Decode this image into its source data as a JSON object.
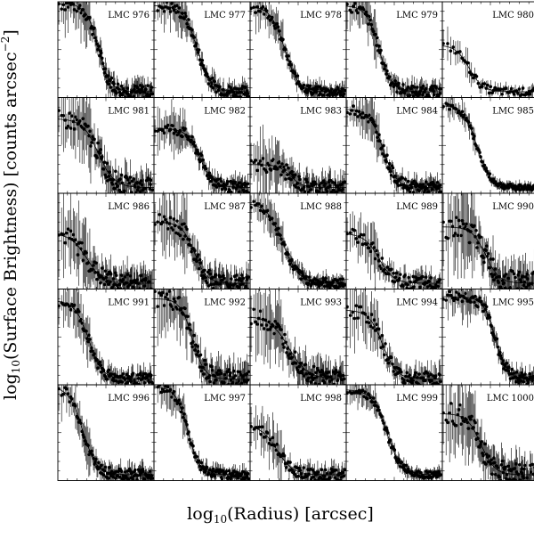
{
  "figure": {
    "xlabel": {
      "pre": "log",
      "sub": "10",
      "post": "(Radius) [arcsec]"
    },
    "ylabel": {
      "pre": "log",
      "sub": "10",
      "post": "(Surface Brightness) [counts arcsec",
      "sup": "−2",
      "end": "]"
    }
  },
  "chart_data": {
    "type": "scatter",
    "layout": "grid 5x5 small multiples, shared axes, no tick labels",
    "markers": "filled circles with vertical error bars",
    "model": "solid line profile (flat core then decline) per panel",
    "panels": [
      {
        "label": "LMC 976",
        "core": 0.98,
        "mid": 0.42,
        "slope": 16,
        "noise": 0.07,
        "points": 110
      },
      {
        "label": "LMC 977",
        "core": 0.96,
        "mid": 0.45,
        "slope": 14,
        "noise": 0.06,
        "points": 110
      },
      {
        "label": "LMC 978",
        "core": 0.95,
        "mid": 0.36,
        "slope": 14,
        "noise": 0.05,
        "points": 110
      },
      {
        "label": "LMC 979",
        "core": 0.96,
        "mid": 0.34,
        "slope": 15,
        "noise": 0.06,
        "points": 110
      },
      {
        "label": "LMC 980",
        "core": 0.55,
        "mid": 0.28,
        "slope": 14,
        "noise": 0.04,
        "points": 60
      },
      {
        "label": "LMC 981",
        "core": 0.78,
        "mid": 0.42,
        "slope": 12,
        "noise": 0.1,
        "points": 110
      },
      {
        "label": "LMC 982",
        "core": 0.68,
        "mid": 0.48,
        "slope": 14,
        "noise": 0.06,
        "points": 110
      },
      {
        "label": "LMC 983",
        "core": 0.3,
        "mid": 0.42,
        "slope": 16,
        "noise": 0.08,
        "points": 110
      },
      {
        "label": "LMC 984",
        "core": 0.88,
        "mid": 0.38,
        "slope": 14,
        "noise": 0.06,
        "points": 110
      },
      {
        "label": "LMC 985",
        "core": 0.92,
        "mid": 0.36,
        "slope": 14,
        "noise": 0.03,
        "points": 110
      },
      {
        "label": "LMC 986",
        "core": 0.58,
        "mid": 0.3,
        "slope": 12,
        "noise": 0.1,
        "points": 110
      },
      {
        "label": "LMC 987",
        "core": 0.7,
        "mid": 0.42,
        "slope": 15,
        "noise": 0.09,
        "points": 110
      },
      {
        "label": "LMC 988",
        "core": 0.9,
        "mid": 0.34,
        "slope": 12,
        "noise": 0.05,
        "points": 110
      },
      {
        "label": "LMC 989",
        "core": 0.58,
        "mid": 0.34,
        "slope": 13,
        "noise": 0.07,
        "points": 90
      },
      {
        "label": "LMC 990",
        "core": 0.65,
        "mid": 0.45,
        "slope": 14,
        "noise": 0.12,
        "points": 110
      },
      {
        "label": "LMC 991",
        "core": 0.88,
        "mid": 0.32,
        "slope": 14,
        "noise": 0.06,
        "points": 110
      },
      {
        "label": "LMC 992",
        "core": 0.9,
        "mid": 0.4,
        "slope": 16,
        "noise": 0.1,
        "points": 110
      },
      {
        "label": "LMC 993",
        "core": 0.72,
        "mid": 0.4,
        "slope": 10,
        "noise": 0.1,
        "points": 110
      },
      {
        "label": "LMC 994",
        "core": 0.78,
        "mid": 0.38,
        "slope": 14,
        "noise": 0.08,
        "points": 90
      },
      {
        "label": "LMC 995",
        "core": 0.92,
        "mid": 0.55,
        "slope": 16,
        "noise": 0.06,
        "points": 110
      },
      {
        "label": "LMC 996",
        "core": 0.98,
        "mid": 0.26,
        "slope": 14,
        "noise": 0.06,
        "points": 110
      },
      {
        "label": "LMC 997",
        "core": 0.98,
        "mid": 0.35,
        "slope": 16,
        "noise": 0.05,
        "points": 110
      },
      {
        "label": "LMC 998",
        "core": 0.58,
        "mid": 0.28,
        "slope": 12,
        "noise": 0.06,
        "points": 100
      },
      {
        "label": "LMC 999",
        "core": 0.95,
        "mid": 0.42,
        "slope": 13,
        "noise": 0.04,
        "points": 110
      },
      {
        "label": "LMC 1000",
        "core": 0.7,
        "mid": 0.4,
        "slope": 14,
        "noise": 0.12,
        "points": 110
      }
    ],
    "grid": false
  }
}
